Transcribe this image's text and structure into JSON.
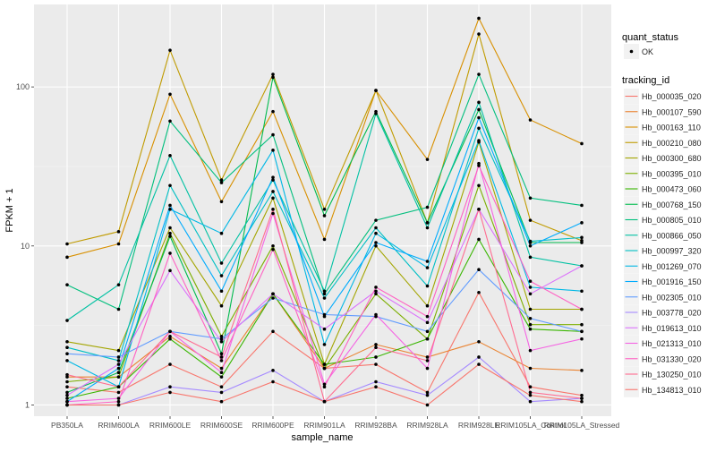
{
  "chart_data": {
    "type": "line",
    "xlabel": "sample_name",
    "ylabel": "FPKM + 1",
    "y_scale": "log10",
    "ylim": [
      0.85,
      330
    ],
    "y_ticks": [
      1,
      10,
      100
    ],
    "grid": true,
    "legend_position": "right",
    "categories": [
      "PB350LA",
      "RRIM600LA",
      "RRIM600LE",
      "RRIM600SE",
      "RRIM600PE",
      "RRIM901LA",
      "RRIM928BA",
      "RRIM928LA",
      "RRIM928LE",
      "RRIM105LA_Control",
      "RRIM105LA_Stressed"
    ],
    "quant_status": {
      "title": "quant_status",
      "entries": [
        "OK"
      ]
    },
    "series_legend_title": "tracking_id",
    "series": [
      {
        "name": "Hb_000035_020",
        "color": "#F8766D",
        "values": [
          1.3,
          1.2,
          1.8,
          1.3,
          2.9,
          1.7,
          1.8,
          1.2,
          5.1,
          1.3,
          1.15
        ]
      },
      {
        "name": "Hb_000107_590",
        "color": "#EA8331",
        "values": [
          1.5,
          1.5,
          2.7,
          1.7,
          5.0,
          1.7,
          2.4,
          2.0,
          2.5,
          1.7,
          1.65
        ]
      },
      {
        "name": "Hb_000163_110",
        "color": "#D89000",
        "values": [
          8.5,
          10.3,
          90.0,
          19.0,
          70.0,
          11.0,
          95.0,
          35.0,
          270.0,
          62.0,
          44.0
        ]
      },
      {
        "name": "Hb_000210_080",
        "color": "#C09B00",
        "values": [
          10.3,
          12.3,
          170.0,
          26.0,
          120.0,
          17.0,
          95.0,
          14.0,
          215.0,
          14.5,
          10.8
        ]
      },
      {
        "name": "Hb_000300_680",
        "color": "#A3A500",
        "values": [
          2.5,
          2.2,
          13.0,
          4.2,
          20.0,
          1.8,
          10.0,
          4.2,
          45.0,
          4.0,
          4.0
        ]
      },
      {
        "name": "Hb_000395_010",
        "color": "#7CAE00",
        "values": [
          1.4,
          1.5,
          12.0,
          2.7,
          10.0,
          1.7,
          5.0,
          2.6,
          24.0,
          3.2,
          3.2
        ]
      },
      {
        "name": "Hb_000473_060",
        "color": "#39B600",
        "values": [
          1.1,
          1.3,
          2.6,
          1.5,
          5.0,
          1.8,
          2.0,
          2.6,
          11.0,
          3.0,
          2.9
        ]
      },
      {
        "name": "Hb_000768_150",
        "color": "#00BB4E",
        "values": [
          1.2,
          1.6,
          11.5,
          2.1,
          115.0,
          15.5,
          70.0,
          14.0,
          72.0,
          10.5,
          10.5
        ]
      },
      {
        "name": "Hb_000805_010",
        "color": "#00BF7D",
        "values": [
          5.7,
          4.0,
          61.0,
          25.0,
          50.0,
          5.0,
          14.5,
          17.5,
          120.0,
          20.0,
          18.0
        ]
      },
      {
        "name": "Hb_000866_050",
        "color": "#00C1A3",
        "values": [
          3.4,
          5.7,
          37.0,
          7.8,
          26.0,
          5.2,
          68.0,
          13.0,
          80.0,
          8.5,
          7.5
        ]
      },
      {
        "name": "Hb_000997_320",
        "color": "#00BFC4",
        "values": [
          2.3,
          1.9,
          24.0,
          6.5,
          22.0,
          4.7,
          13.0,
          5.6,
          55.0,
          10.7,
          11.3
        ]
      },
      {
        "name": "Hb_001269_070",
        "color": "#00B8E5",
        "values": [
          1.9,
          1.3,
          17.0,
          12.0,
          40.0,
          2.4,
          12.0,
          7.3,
          46.0,
          5.5,
          5.2
        ]
      },
      {
        "name": "Hb_001916_150",
        "color": "#00ABFD",
        "values": [
          1.05,
          1.7,
          18.0,
          5.2,
          27.0,
          3.6,
          10.5,
          8.0,
          64.0,
          10.0,
          14.0
        ]
      },
      {
        "name": "Hb_002305_010",
        "color": "#619CFF",
        "values": [
          2.1,
          2.0,
          2.9,
          2.6,
          4.7,
          3.7,
          3.6,
          2.9,
          7.1,
          3.5,
          2.9
        ]
      },
      {
        "name": "Hb_003778_020",
        "color": "#A58AFF",
        "values": [
          1.0,
          1.0,
          1.3,
          1.2,
          1.65,
          1.05,
          1.4,
          1.15,
          2.0,
          1.05,
          1.1
        ]
      },
      {
        "name": "Hb_019613_010",
        "color": "#DB72FB",
        "values": [
          1.15,
          1.8,
          7.0,
          2.5,
          5.0,
          3.0,
          5.2,
          3.3,
          17.0,
          5.0,
          7.5
        ]
      },
      {
        "name": "Hb_021313_010",
        "color": "#F564E3",
        "values": [
          1.05,
          1.1,
          2.9,
          1.6,
          16.0,
          1.35,
          3.7,
          1.7,
          33.0,
          2.2,
          2.6
        ]
      },
      {
        "name": "Hb_031330_020",
        "color": "#FF61C3",
        "values": [
          1.0,
          1.05,
          9.0,
          1.9,
          9.5,
          1.3,
          5.5,
          3.6,
          32.0,
          6.0,
          4.0
        ]
      },
      {
        "name": "Hb_130250_010",
        "color": "#FF6C91",
        "values": [
          1.55,
          1.3,
          2.9,
          2.0,
          17.0,
          1.05,
          2.3,
          1.9,
          17.0,
          1.2,
          1.1
        ]
      },
      {
        "name": "Hb_134813_010",
        "color": "#F8766D",
        "values": [
          1.0,
          1.0,
          1.2,
          1.05,
          1.4,
          1.05,
          1.3,
          1.0,
          1.8,
          1.15,
          1.05
        ]
      }
    ]
  }
}
